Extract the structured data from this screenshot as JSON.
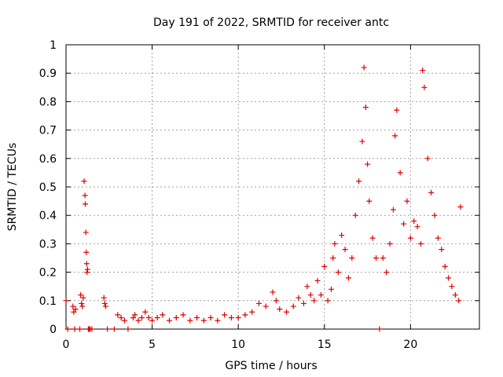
{
  "chart_data": {
    "type": "scatter",
    "title": "Day 191 of 2022, SRMTID for receiver antc",
    "xlabel": "GPS time / hours",
    "ylabel": "SRMTID / TECUs",
    "xlim": [
      0,
      24
    ],
    "ylim": [
      0,
      1
    ],
    "xticks": [
      0,
      5,
      10,
      15,
      20
    ],
    "xtick_labels": [
      "0",
      "5",
      "10",
      "15",
      "20"
    ],
    "yticks": [
      0,
      0.1,
      0.2,
      0.3,
      0.4,
      0.5,
      0.6,
      0.7,
      0.8,
      0.9,
      1
    ],
    "ytick_labels": [
      "0",
      "0.1",
      "0.2",
      "0.3",
      "0.4",
      "0.5",
      "0.6",
      "0.7",
      "0.8",
      "0.9",
      "1"
    ],
    "grid": true,
    "marker": "+",
    "color": "#e00000",
    "series": [
      {
        "name": "SRMTID",
        "x": [
          0.0,
          0.1,
          0.4,
          0.45,
          0.5,
          0.55,
          0.8,
          0.85,
          0.9,
          0.95,
          1.0,
          1.05,
          1.1,
          1.12,
          1.15,
          1.18,
          1.2,
          1.22,
          1.25,
          1.3,
          1.35,
          1.4,
          1.5,
          2.2,
          2.25,
          2.3,
          2.4,
          2.8,
          3.0,
          3.2,
          3.4,
          3.6,
          3.9,
          4.0,
          4.2,
          4.4,
          4.6,
          4.8,
          5.0,
          5.3,
          5.6,
          6.0,
          6.4,
          6.8,
          7.2,
          7.6,
          8.0,
          8.4,
          8.8,
          9.2,
          9.6,
          10.0,
          10.4,
          10.8,
          11.2,
          11.6,
          12.0,
          12.2,
          12.4,
          12.8,
          13.2,
          13.5,
          13.8,
          14.0,
          14.2,
          14.4,
          14.6,
          14.8,
          15.0,
          15.2,
          15.4,
          15.5,
          15.6,
          15.8,
          16.0,
          16.2,
          16.4,
          16.6,
          16.8,
          17.0,
          17.2,
          17.3,
          17.4,
          17.5,
          17.6,
          17.8,
          18.0,
          18.2,
          18.4,
          18.6,
          18.8,
          19.0,
          19.1,
          19.2,
          19.4,
          19.6,
          19.8,
          20.0,
          20.2,
          20.4,
          20.6,
          20.7,
          20.8,
          21.0,
          21.2,
          21.4,
          21.6,
          21.8,
          22.0,
          22.2,
          22.4,
          22.6,
          22.8,
          22.9
        ],
        "y": [
          0.1,
          0.0,
          0.08,
          0.06,
          0.0,
          0.07,
          0.0,
          0.12,
          0.09,
          0.08,
          0.11,
          0.52,
          0.47,
          0.44,
          0.34,
          0.27,
          0.23,
          0.2,
          0.21,
          0.0,
          0.0,
          0.0,
          0.0,
          0.11,
          0.09,
          0.08,
          0.0,
          0.0,
          0.05,
          0.04,
          0.03,
          0.0,
          0.04,
          0.05,
          0.03,
          0.04,
          0.06,
          0.04,
          0.03,
          0.04,
          0.05,
          0.03,
          0.04,
          0.05,
          0.03,
          0.04,
          0.03,
          0.04,
          0.03,
          0.05,
          0.04,
          0.04,
          0.05,
          0.06,
          0.09,
          0.08,
          0.13,
          0.1,
          0.07,
          0.06,
          0.08,
          0.11,
          0.09,
          0.15,
          0.12,
          0.1,
          0.17,
          0.12,
          0.22,
          0.1,
          0.14,
          0.25,
          0.3,
          0.2,
          0.33,
          0.28,
          0.18,
          0.25,
          0.4,
          0.52,
          0.66,
          0.92,
          0.78,
          0.58,
          0.45,
          0.32,
          0.25,
          0.0,
          0.25,
          0.2,
          0.3,
          0.42,
          0.68,
          0.77,
          0.55,
          0.37,
          0.45,
          0.32,
          0.38,
          0.36,
          0.3,
          0.91,
          0.85,
          0.6,
          0.48,
          0.4,
          0.32,
          0.28,
          0.22,
          0.18,
          0.15,
          0.12,
          0.1,
          0.43
        ]
      }
    ]
  }
}
